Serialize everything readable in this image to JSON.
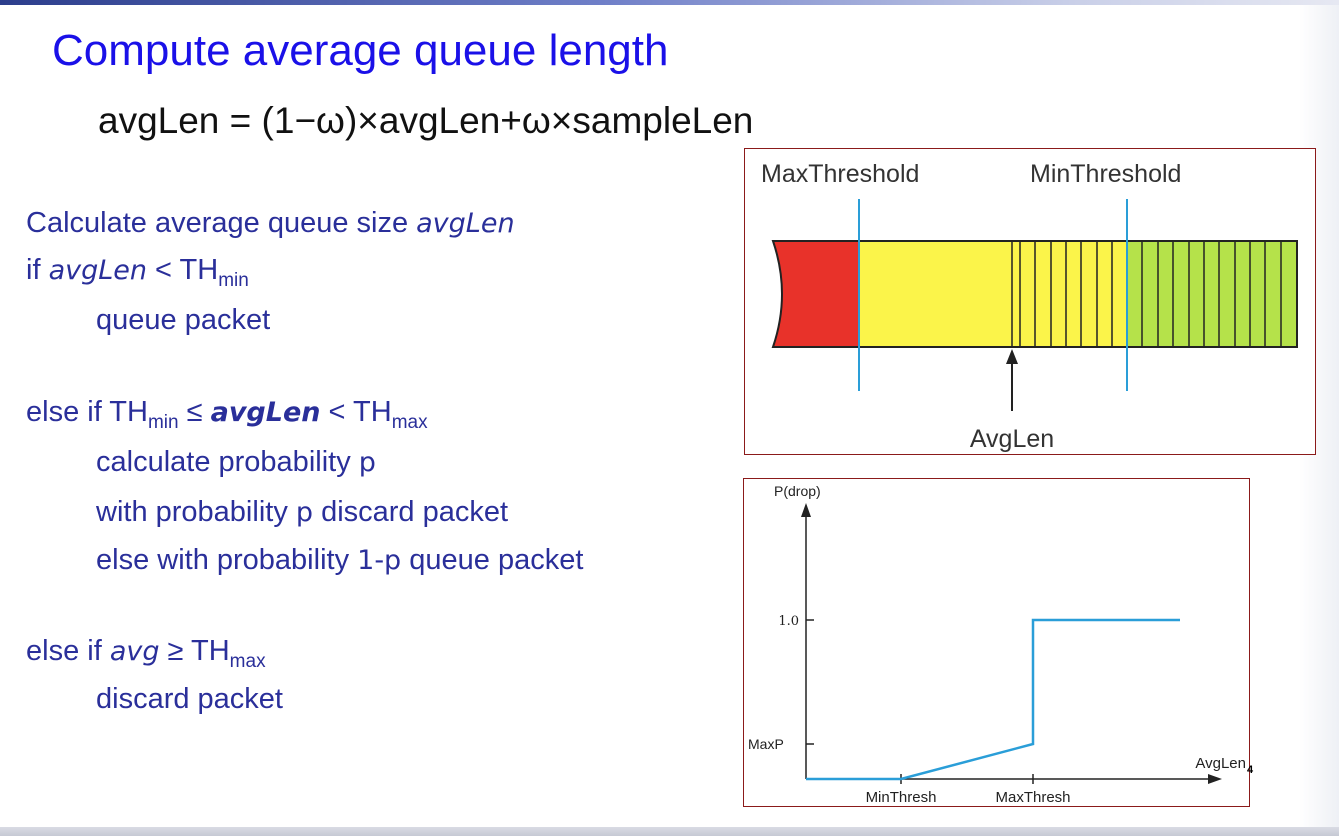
{
  "slide": {
    "title": "Compute average queue length",
    "formula": "avgLen = (1−ω)×avgLen+ω×sampleLen",
    "page_number": "4"
  },
  "algorithm": {
    "line1_text": "Calculate average queue size ",
    "line1_var": "avgLen",
    "line2_if": "if ",
    "line2_var": "avgLen",
    "line2_op": " < TH",
    "line2_sub": "min",
    "line3": "queue packet",
    "line4_prefix": "else if TH",
    "line4_sub1": "min",
    "line4_op1": " ≤ ",
    "line4_var": "avgLen",
    "line4_op2": " < TH",
    "line4_sub2": "max",
    "line5_text": "calculate probability ",
    "line5_var": "p",
    "line6_a": "with probability ",
    "line6_var": "p",
    "line6_b": " discard packet",
    "line7_a": "else with probability ",
    "line7_var": "1-p",
    "line7_b": " queue packet",
    "line8_prefix": "else if ",
    "line8_var": "avg",
    "line8_op": " ≥ TH",
    "line8_sub": "max",
    "line9": "discard packet"
  },
  "queue_diagram": {
    "max_threshold_label": "MaxThreshold",
    "min_threshold_label": "MinThreshold",
    "avglen_label": "AvgLen",
    "colors": {
      "drop": "#e8322a",
      "probabilistic": "#fbf44a",
      "queue": "#b5e24a",
      "threshold_line": "#2a9ed8",
      "border": "#8b1a1a"
    }
  },
  "drop_chart": {
    "y_axis_label": "P(drop)",
    "y_tick_1": "1.0",
    "y_tick_maxp": "MaxP",
    "x_axis_label": "AvgLen",
    "x_tick_min": "MinThresh",
    "x_tick_max": "MaxThresh",
    "line_color": "#2a9ed8"
  },
  "chart_data": {
    "type": "line",
    "x_categories": [
      "0",
      "MinThresh",
      "MaxThresh",
      "max"
    ],
    "series": [
      {
        "points": [
          [
            "0",
            0
          ],
          [
            "MinThresh",
            0
          ],
          [
            "MaxThresh",
            "MaxP"
          ],
          [
            "MaxThresh",
            1.0
          ],
          [
            "max",
            1.0
          ]
        ]
      }
    ],
    "xlabel": "AvgLen",
    "ylabel": "P(drop)",
    "y_ticks": [
      "MaxP",
      "1.0"
    ]
  }
}
